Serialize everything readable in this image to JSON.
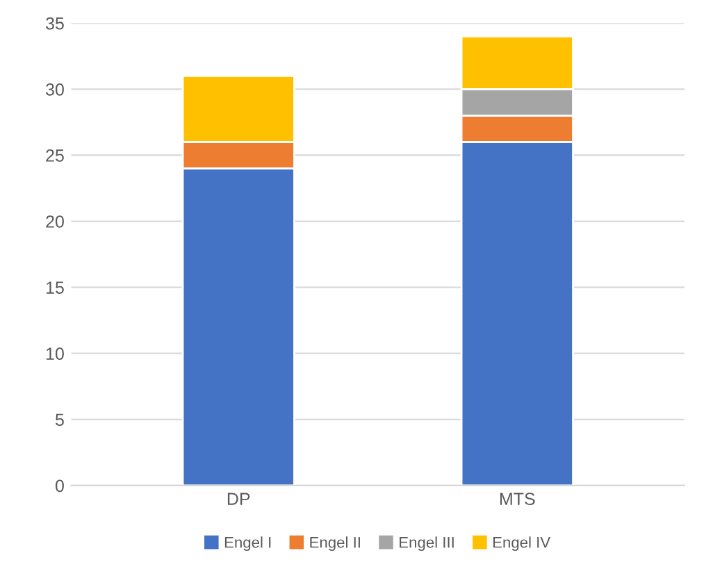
{
  "chart_data": {
    "type": "bar",
    "stacked": true,
    "categories": [
      "DP",
      "MTS"
    ],
    "series": [
      {
        "name": "Engel I",
        "color": "#4472c4",
        "values": [
          24,
          26
        ]
      },
      {
        "name": "Engel II",
        "color": "#ed7d31",
        "values": [
          2,
          2
        ]
      },
      {
        "name": "Engel III",
        "color": "#a5a5a5",
        "values": [
          0,
          2
        ]
      },
      {
        "name": "Engel IV",
        "color": "#ffc000",
        "values": [
          5,
          4
        ]
      }
    ],
    "ylim": [
      0,
      35
    ],
    "yticks": [
      0,
      5,
      10,
      15,
      20,
      25,
      30,
      35
    ],
    "grid": "y",
    "legend": "bottom"
  }
}
